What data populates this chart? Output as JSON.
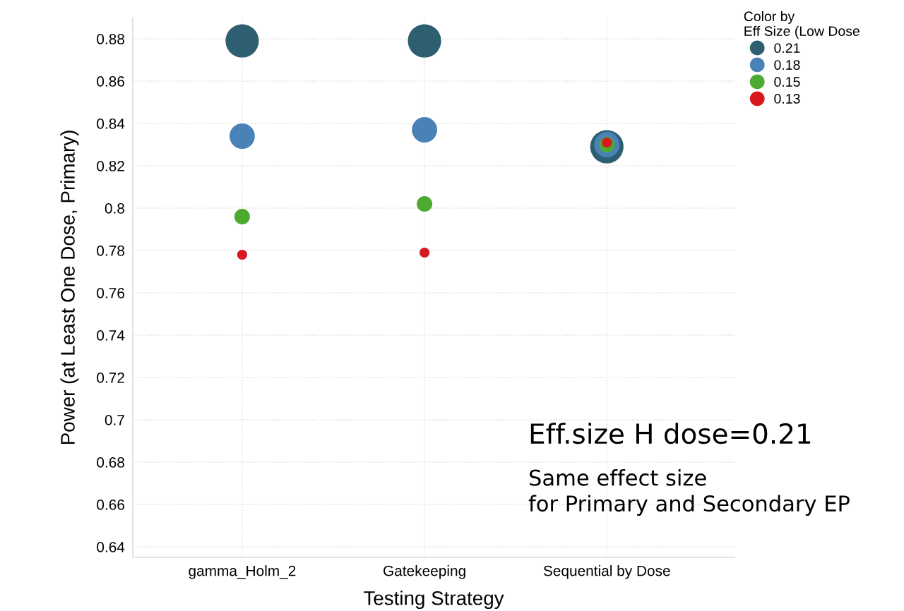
{
  "chart_data": {
    "type": "bubble",
    "xlabel": "Testing Strategy",
    "ylabel": "Power (at Least One Dose, Primary)",
    "legend_title": "Color by\nEff Size (Low Dose",
    "categories": [
      "gamma_Holm_2",
      "Gatekeeping",
      "Sequential by Dose"
    ],
    "series": [
      {
        "name": "0.21",
        "color": "#2e5f70",
        "values": [
          0.879,
          0.879,
          0.829
        ],
        "sizes": [
          1,
          1,
          1
        ]
      },
      {
        "name": "0.18",
        "color": "#4a82b8",
        "values": [
          0.834,
          0.837,
          0.83
        ],
        "sizes": [
          0.58,
          0.58,
          0.58
        ]
      },
      {
        "name": "0.15",
        "color": "#4caa2e",
        "values": [
          0.796,
          0.802,
          0.83
        ],
        "sizes": [
          0.22,
          0.22,
          0.22
        ]
      },
      {
        "name": "0.13",
        "color": "#d7191f",
        "values": [
          0.778,
          0.779,
          0.831
        ],
        "sizes": [
          0.09,
          0.09,
          0.09
        ]
      }
    ],
    "ylim": [
      0.635,
      0.89
    ],
    "yticks": [
      0.64,
      0.66,
      0.68,
      0.7,
      0.72,
      0.74,
      0.76,
      0.78,
      0.8,
      0.82,
      0.84,
      0.86,
      0.88
    ],
    "grid": true,
    "legend": "top right",
    "annotations": [
      "Eff.size H dose=0.21",
      "Same effect size\nfor Primary and Secondary EP"
    ]
  }
}
